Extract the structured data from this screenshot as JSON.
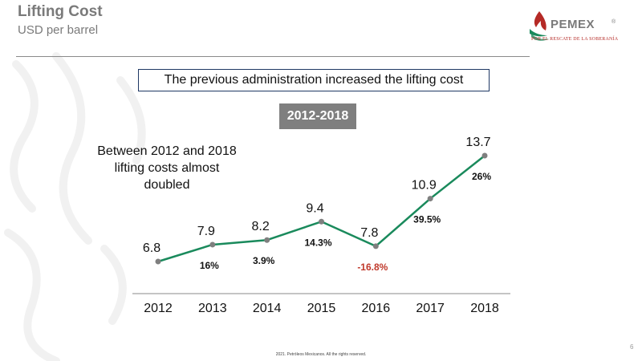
{
  "header": {
    "title": "Lifting Cost",
    "subtitle": "USD per barrel"
  },
  "logo": {
    "word": "PEMEX",
    "registered": "®",
    "tagline": "POR EL RESCATE DE LA SOBERANÍA"
  },
  "callout": "The previous administration increased the lifting cost",
  "period_label": "2012-2018",
  "note": "Between 2012 and 2018 lifting costs almost doubled",
  "footer": "2021. Petróleos Mexicanos. All the rights reserved.",
  "page_number": "6",
  "colors": {
    "line": "#1a8a5c",
    "marker": "#7f7f7f",
    "negative": "#c0392b",
    "brand_red": "#b52a26"
  },
  "chart_data": {
    "type": "line",
    "categories": [
      "2012",
      "2013",
      "2014",
      "2015",
      "2016",
      "2017",
      "2018"
    ],
    "values": [
      6.8,
      7.9,
      8.2,
      9.4,
      7.8,
      10.9,
      13.7
    ],
    "value_labels": [
      "6.8",
      "7.9",
      "8.2",
      "9.4",
      "7.8",
      "10.9",
      "13.7"
    ],
    "changes": [
      {
        "from": "2012",
        "to": "2013",
        "label": "16%",
        "negative": false
      },
      {
        "from": "2013",
        "to": "2014",
        "label": "3.9%",
        "negative": false
      },
      {
        "from": "2014",
        "to": "2015",
        "label": "14.3%",
        "negative": false
      },
      {
        "from": "2015",
        "to": "2016",
        "label": "-16.8%",
        "negative": true
      },
      {
        "from": "2016",
        "to": "2017",
        "label": "39.5%",
        "negative": false
      },
      {
        "from": "2017",
        "to": "2018",
        "label": "26%",
        "negative": false
      }
    ],
    "title": "",
    "xlabel": "",
    "ylabel": "",
    "grid": false,
    "legend": "none"
  }
}
